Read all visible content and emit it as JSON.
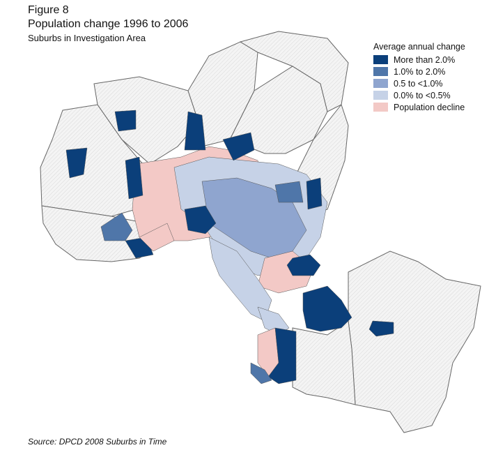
{
  "title": {
    "figure": "Figure 8",
    "main": "Population change 1996 to 2006",
    "sub": "Suburbs in Investigation Area"
  },
  "legend": {
    "title": "Average annual change",
    "items": [
      {
        "label": "More than 2.0%",
        "color": "#0b3f7a"
      },
      {
        "label": "1.0% to 2.0%",
        "color": "#4f76a9"
      },
      {
        "label": "0.5 to <1.0%",
        "color": "#8fa5cf"
      },
      {
        "label": "0.0% to <0.5%",
        "color": "#c6d2e7"
      },
      {
        "label": "Population decline",
        "color": "#f3c9c6"
      }
    ]
  },
  "source": "Source: DPCD 2008 Suburbs in Time"
}
